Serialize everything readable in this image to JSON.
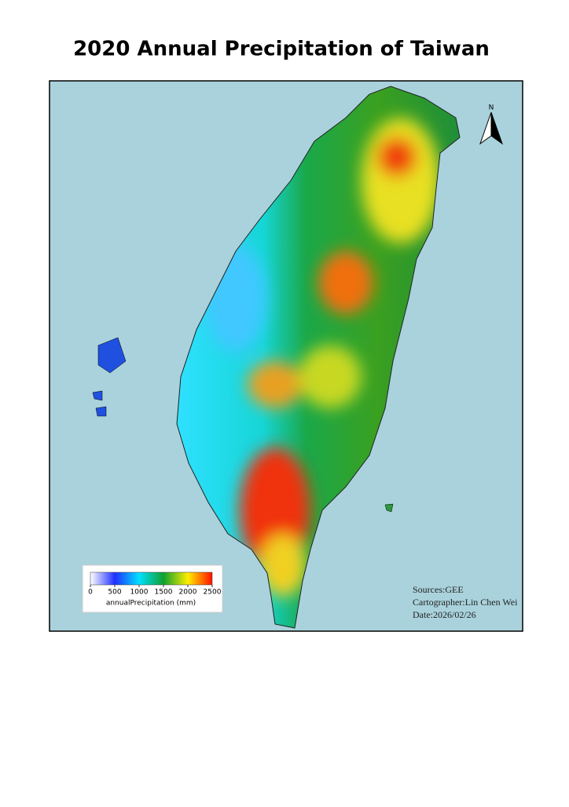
{
  "title": "2020 Annual Precipitation of Taiwan",
  "north_arrow": "N",
  "legend": {
    "label": "annualPrecipitation (mm)",
    "lim": [
      0,
      2500
    ],
    "ticks": [
      0,
      500,
      1000,
      1500,
      2000,
      2500
    ]
  },
  "credits": [
    "Sources:GEE",
    "Cartographer:Lin Chen Wei",
    "Date:2026/02/26"
  ]
}
